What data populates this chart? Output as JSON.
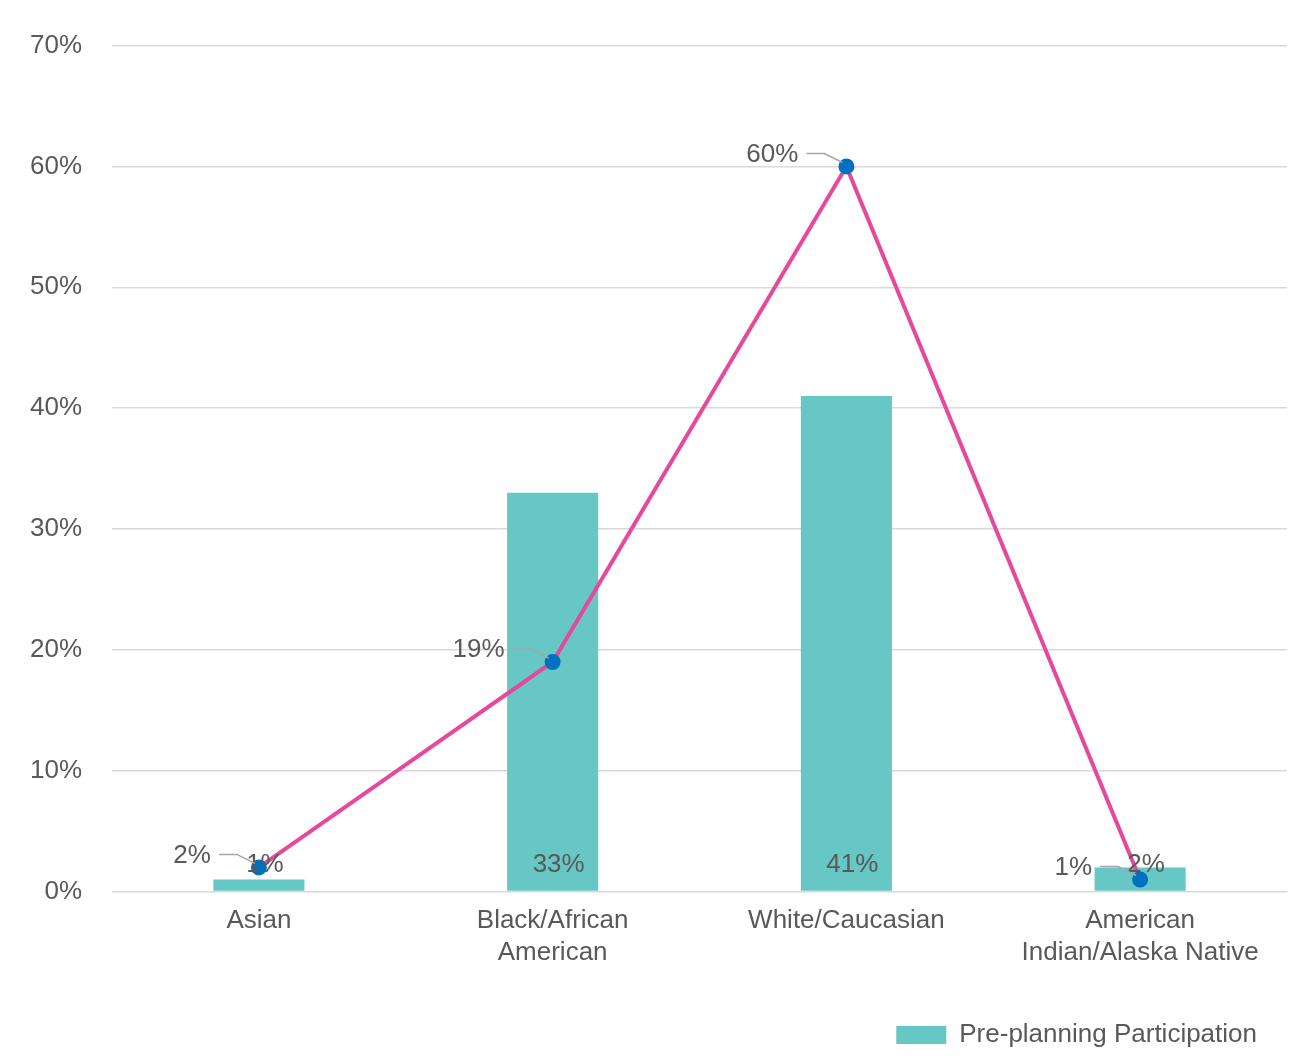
{
  "chart_data": {
    "type": "bar",
    "categories": [
      "Asian",
      "Black/African American",
      "White/Caucasian",
      "American Indian/Alaska Native"
    ],
    "series": [
      {
        "name": "Pre-planning Participation",
        "color": "#66c7c4",
        "values": [
          1,
          33,
          41,
          2
        ],
        "value_labels": [
          "1%",
          "33%",
          "41%",
          "2%"
        ]
      },
      {
        "type": "line",
        "color": "#e6489c",
        "colors": [
          "#0070c0",
          "#0070c0",
          "#0070c0",
          "#0070c0"
        ],
        "values": [
          2,
          19,
          60,
          1
        ],
        "value_labels": [
          "2%",
          "19%",
          "60%",
          "1%"
        ]
      }
    ],
    "ylim": [
      0,
      70
    ],
    "yticks": [
      {
        "value": 0,
        "label": "0%"
      },
      {
        "value": 10,
        "label": "10%"
      },
      {
        "value": 20,
        "label": "20%"
      },
      {
        "value": 30,
        "label": "30%"
      },
      {
        "value": 40,
        "label": "40%"
      },
      {
        "value": 50,
        "label": "50%"
      },
      {
        "value": 60,
        "label": "60%"
      },
      {
        "value": 70,
        "label": "70%"
      }
    ],
    "grid": "y",
    "legend": "bottom",
    "marker": "circle",
    "line_style": "solid"
  }
}
